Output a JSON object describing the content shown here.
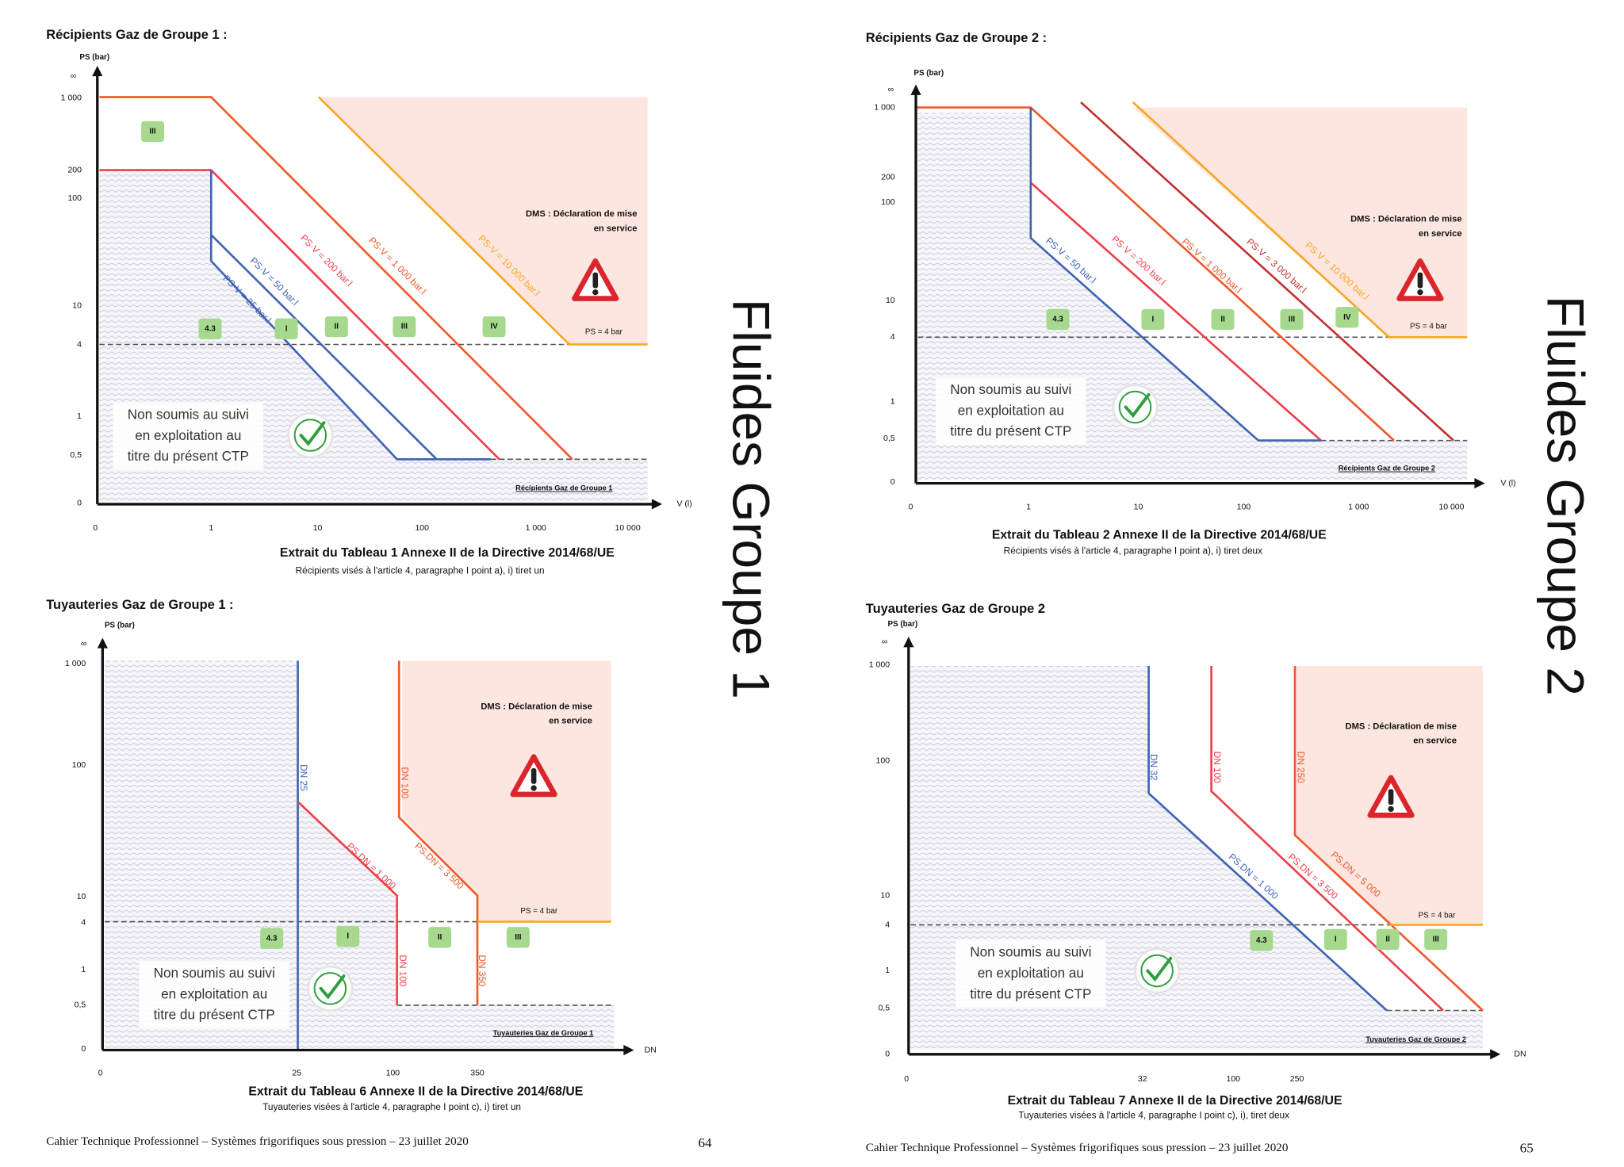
{
  "side_titles": [
    "Fluides Groupe 1",
    "Fluides Groupe 2"
  ],
  "panels": [
    {
      "title": "Récipients Gaz de Groupe 1  :",
      "y_label": "PS (bar)",
      "y_infinity": "∞",
      "y_ticks": [
        "1 000",
        "200",
        "100",
        "10",
        "4",
        "1",
        "0,5",
        "0"
      ],
      "x_label": "V (l)",
      "x_ticks": [
        "0",
        "1",
        "10",
        "100",
        "1 000",
        "10 000"
      ],
      "curve_labels": [
        "PS·V = 25 bar.l",
        "PS·V = 50 bar.l",
        "PS·V = 200 bar.l",
        "PS·V = 1 000 bar.l",
        "PS·V = 10 000 bar.l"
      ],
      "categories": [
        "III",
        "4.3",
        "I",
        "II",
        "III",
        "IV"
      ],
      "dms": [
        "DMS : Déclaration de mise",
        "en service"
      ],
      "ps_limit": "PS = 4 bar",
      "exempt": [
        "Non soumis au suivi",
        "en exploitation au",
        "titre du présent CTP"
      ],
      "corner_label": "Récipients Gaz de Groupe 1",
      "caption": "Extrait du Tableau 1 Annexe II de la Directive 2014/68/UE",
      "caption_sub": "Récipients visés à l'article 4, paragraphe I point a), i) tiret un"
    },
    {
      "title": "Récipients Gaz de Groupe 2  :",
      "y_label": "PS (bar)",
      "y_infinity": "∞",
      "y_ticks": [
        "1 000",
        "200",
        "100",
        "10",
        "4",
        "1",
        "0,5",
        "0"
      ],
      "x_label": "V (l)",
      "x_ticks": [
        "0",
        "1",
        "10",
        "100",
        "1 000",
        "10 000"
      ],
      "curve_labels": [
        "PS·V = 50 bar.l",
        "PS·V = 200 bar.l",
        "PS·V = 1 000 bar.l",
        "PS·V = 3 000 bar.l",
        "PS·V = 10 000 bar.l"
      ],
      "categories": [
        "4.3",
        "I",
        "II",
        "III",
        "IV"
      ],
      "dms": [
        "DMS : Déclaration de mise",
        "en service"
      ],
      "ps_limit": "PS = 4 bar",
      "exempt": [
        "Non soumis au suivi",
        "en exploitation au",
        "titre du présent CTP"
      ],
      "corner_label": "Récipients Gaz de Groupe 2",
      "caption": "Extrait du Tableau 2 Annexe II de la Directive 2014/68/UE",
      "caption_sub": "Récipients visés à l'article 4, paragraphe I point a), i) tiret deux"
    },
    {
      "title": "Tuyauteries Gaz de Groupe 1  :",
      "y_label": "PS (bar)",
      "y_infinity": "∞",
      "y_ticks": [
        "1 000",
        "100",
        "10",
        "4",
        "1",
        "0,5",
        "0"
      ],
      "x_label": "DN",
      "x_ticks": [
        "0",
        "25",
        "100",
        "350"
      ],
      "curve_labels": [
        "DN 25",
        "PS.DN = 1 000",
        "DN 100",
        "PS.DN = 3 500",
        "DN 100",
        "DN 350"
      ],
      "categories": [
        "4.3",
        "I",
        "II",
        "III"
      ],
      "dms": [
        "DMS : Déclaration de mise",
        "en service"
      ],
      "ps_limit": "PS = 4 bar",
      "exempt": [
        "Non soumis au suivi",
        "en exploitation au",
        "titre du présent CTP"
      ],
      "corner_label": "Tuyauteries Gaz de Groupe 1",
      "caption": "Extrait du Tableau 6 Annexe II de la Directive 2014/68/UE",
      "caption_sub": "Tuyauteries visées à l'article 4, paragraphe I point c), i) tiret un"
    },
    {
      "title": "Tuyauteries Gaz de Groupe 2",
      "y_label": "PS (bar)",
      "y_infinity": "∞",
      "y_ticks": [
        "1 000",
        "100",
        "10",
        "4",
        "1",
        "0,5",
        "0"
      ],
      "x_label": "DN",
      "x_ticks": [
        "0",
        "32",
        "100",
        "250"
      ],
      "curve_labels": [
        "DN 32",
        "DN 100",
        "DN 250",
        "PS.DN = 1 000",
        "PS.DN = 3 500",
        "PS.DN = 5 000"
      ],
      "categories": [
        "4.3",
        "I",
        "II",
        "III"
      ],
      "dms": [
        "DMS : Déclaration de mise",
        "en service"
      ],
      "ps_limit": "PS = 4 bar",
      "exempt": [
        "Non soumis au suivi",
        "en exploitation au",
        "titre du présent CTP"
      ],
      "corner_label": "Tuyauteries Gaz de Groupe 2",
      "caption": "Extrait du Tableau 7 Annexe II de la Directive 2014/68/UE",
      "caption_sub": "Tuyauteries visées à l'article 4, paragraphe I point c), i), tiret deux"
    }
  ],
  "footers": [
    {
      "text": "Cahier Technique Professionnel – Systèmes frigorifiques sous pression – 23 juillet 2020",
      "page": "64"
    },
    {
      "text": "Cahier Technique Professionnel – Systèmes frigorifiques sous pression – 23 juillet 2020",
      "page": "65"
    }
  ]
}
